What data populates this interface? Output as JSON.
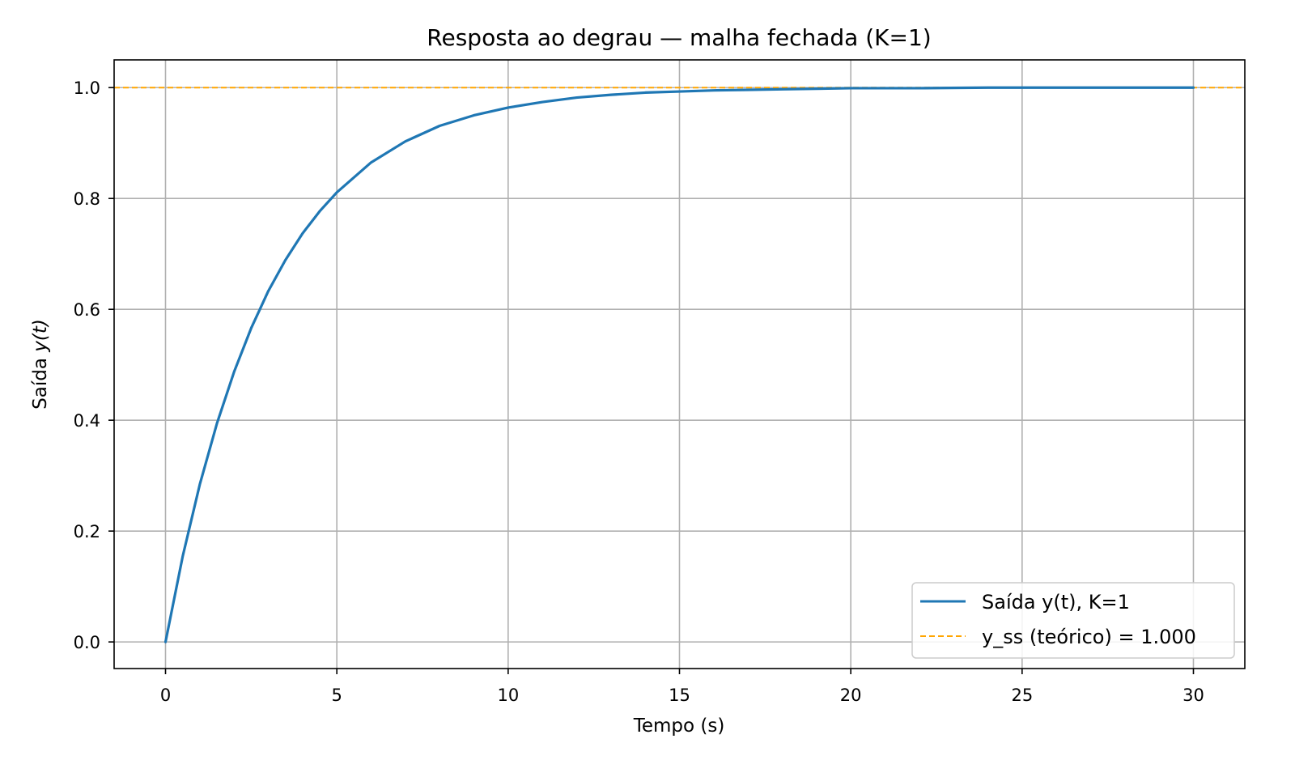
{
  "chart_data": {
    "type": "line",
    "title": "Resposta ao degrau — malha fechada (K=1)",
    "xlabel": "Tempo (s)",
    "ylabel_prefix": "Saída ",
    "ylabel_math": "y(t)",
    "xlim": [
      -1.5,
      31.5
    ],
    "ylim": [
      -0.048,
      1.05
    ],
    "xticks": [
      0,
      5,
      10,
      15,
      20,
      25,
      30
    ],
    "yticks": [
      0.0,
      0.2,
      0.4,
      0.6,
      0.8,
      1.0
    ],
    "xtick_labels": [
      "0",
      "5",
      "10",
      "15",
      "20",
      "25",
      "30"
    ],
    "ytick_labels": [
      "0.0",
      "0.2",
      "0.4",
      "0.6",
      "0.8",
      "1.0"
    ],
    "grid": true,
    "legend_position": "lower-right",
    "series": [
      {
        "name": "Saída y(t), K=1",
        "style": "solid",
        "color": "#1f77b4",
        "x": [
          0,
          0.5,
          1,
          1.5,
          2,
          2.5,
          3,
          3.5,
          4,
          4.5,
          5,
          6,
          7,
          8,
          9,
          10,
          11,
          12,
          13,
          14,
          15,
          16,
          17,
          18,
          19,
          20,
          22,
          24,
          26,
          28,
          30
        ],
        "y": [
          0,
          0.154,
          0.284,
          0.394,
          0.487,
          0.566,
          0.633,
          0.689,
          0.737,
          0.777,
          0.811,
          0.865,
          0.903,
          0.931,
          0.95,
          0.964,
          0.974,
          0.982,
          0.987,
          0.991,
          0.993,
          0.995,
          0.996,
          0.997,
          0.998,
          0.999,
          0.999,
          1.0,
          1.0,
          1.0,
          1.0
        ]
      },
      {
        "name": "y_ss (teórico) = 1.000",
        "style": "dashed",
        "color": "#ffa500",
        "y_constant": 1.0
      }
    ]
  }
}
